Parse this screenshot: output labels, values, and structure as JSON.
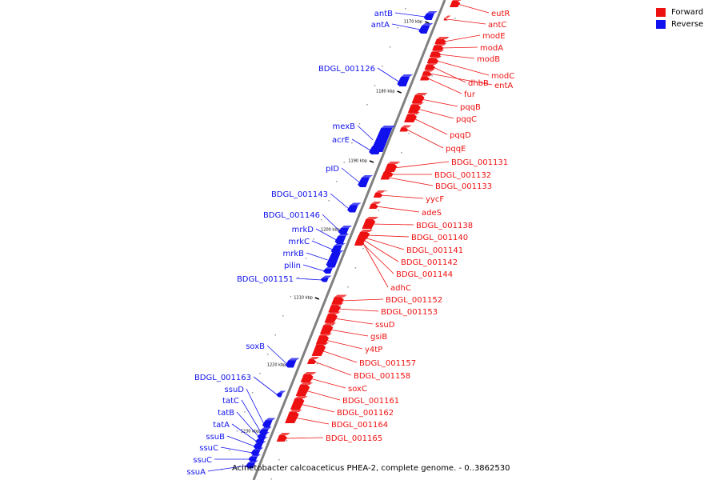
{
  "colors": {
    "forward": "#ee1111",
    "reverse": "#1111ee",
    "axis": "#808080"
  },
  "legend": {
    "forward_label": "Forward",
    "reverse_label": "Reverse"
  },
  "caption": "Acinetobacter calcoaceticus PHEA-2, complete genome. - 0..3862530",
  "ticks": [
    "1170 kbp",
    "1180 kbp",
    "1190 kbp",
    "1200 kbp",
    "1210 kbp",
    "1220 kbp",
    "1230 kbp"
  ],
  "reverse_genes": [
    "antB",
    "antA",
    "BDGL_001126",
    "mexB",
    "acrE",
    "pID",
    "BDGL_001143",
    "BDGL_001146",
    "mrkD",
    "mrkC",
    "mrkB",
    "pilin",
    "BDGL_001151",
    "soxB",
    "BDGL_001163",
    "ssuD",
    "tatC",
    "tatB",
    "tatA",
    "ssuB",
    "ssuC",
    "ssuC",
    "ssuA"
  ],
  "forward_genes": [
    "eutR",
    "antC",
    "modE",
    "modA",
    "modB",
    "modC",
    "dhbB",
    "entA",
    "fur",
    "pqqB",
    "pqqC",
    "pqqD",
    "pqqE",
    "BDGL_001131",
    "BDGL_001132",
    "BDGL_001133",
    "yycF",
    "adeS",
    "BDGL_001138",
    "BDGL_001140",
    "BDGL_001141",
    "BDGL_001142",
    "BDGL_001144",
    "adhC",
    "BDGL_001152",
    "BDGL_001153",
    "ssuD",
    "gsiB",
    "y4tP",
    "BDGL_001157",
    "BDGL_001158",
    "soxC",
    "BDGL_001161",
    "BDGL_001162",
    "BDGL_001164",
    "BDGL_001165"
  ]
}
